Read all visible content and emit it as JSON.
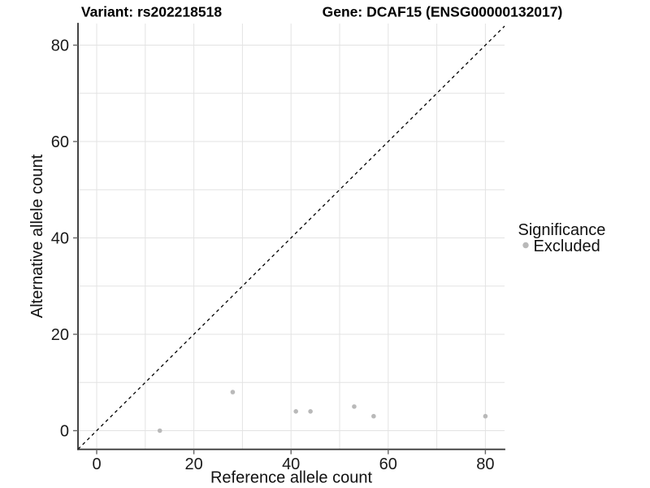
{
  "chart_data": {
    "type": "scatter",
    "titles": {
      "variant": "Variant: rs202218518",
      "gene": "Gene: DCAF15 (ENSG00000132017)"
    },
    "xlabel": "Reference allele count",
    "ylabel": "Alternative allele count",
    "xlim": [
      -4,
      84
    ],
    "ylim": [
      -4,
      84
    ],
    "xticks": [
      0,
      20,
      40,
      60,
      80
    ],
    "yticks": [
      0,
      20,
      40,
      60,
      80
    ],
    "grid_values": [
      0,
      10,
      20,
      30,
      40,
      50,
      60,
      70,
      80
    ],
    "grid": "on",
    "legend_position": "right",
    "series": [
      {
        "name": "Excluded",
        "color": "#b9b9b9",
        "points": [
          [
            13,
            0
          ],
          [
            28,
            8
          ],
          [
            41,
            4
          ],
          [
            44,
            4
          ],
          [
            53,
            5
          ],
          [
            57,
            3
          ],
          [
            80,
            3
          ]
        ]
      }
    ],
    "reference_line": {
      "kind": "identity y = x",
      "style": "dashed",
      "color": "#000000"
    }
  },
  "legend": {
    "title": "Significance",
    "items": [
      {
        "label": "Excluded",
        "color": "#b9b9b9",
        "marker": "circle"
      }
    ]
  },
  "colors": {
    "background": "#ffffff",
    "gridline": "#e3e3e3",
    "axis_line": "#2f2f2f",
    "tick": "#666666",
    "point": "#b9b9b9",
    "reference_line": "#000000"
  }
}
